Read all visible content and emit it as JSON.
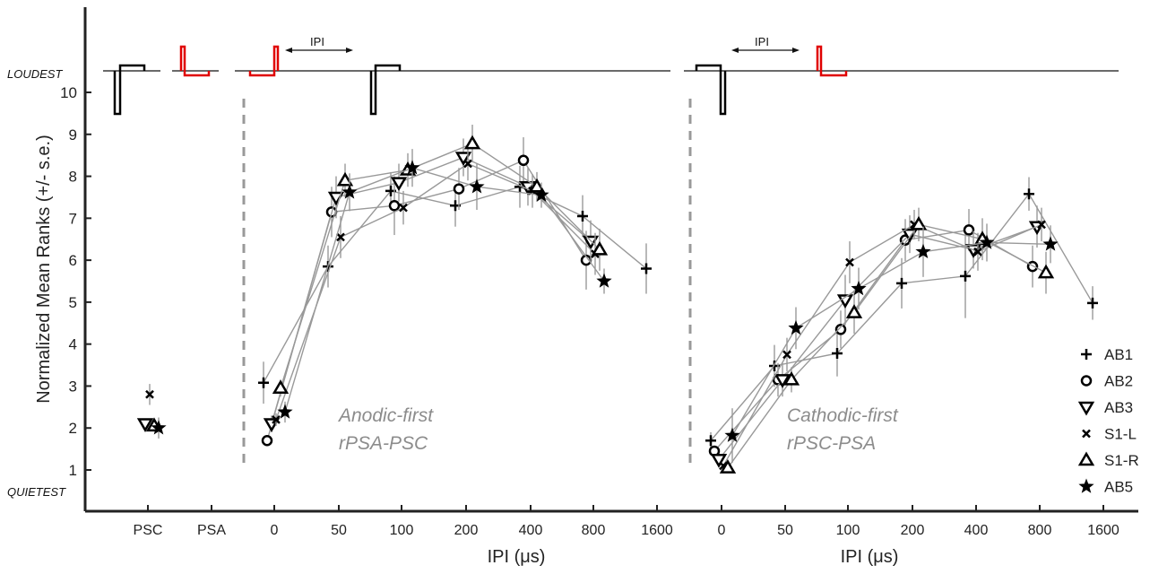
{
  "chart_data": {
    "type": "scatter",
    "ylabel": "Normalized Mean Ranks (+/- s.e.)",
    "ylim": [
      0.5,
      11
    ],
    "y_ticks": [
      1,
      2,
      3,
      4,
      5,
      6,
      7,
      8,
      9,
      10
    ],
    "loud_label": "LOUDEST",
    "quiet_label": "QUIETEST",
    "ipi_marker": "IPI",
    "panels": [
      {
        "id": "reference",
        "x_ticks": [
          "PSC",
          "PSA"
        ],
        "series": [
          {
            "name": "AB1",
            "points": []
          },
          {
            "name": "AB2",
            "points": []
          },
          {
            "name": "AB3",
            "points": [
              {
                "x": "PSC",
                "y": 2.1,
                "err": 0.1
              }
            ]
          },
          {
            "name": "S1-L",
            "points": [
              {
                "x": "PSC",
                "y": 2.8,
                "err": 0.25
              }
            ]
          },
          {
            "name": "S1-R",
            "points": [
              {
                "x": "PSC",
                "y": 2.05,
                "err": 0.1
              }
            ]
          },
          {
            "name": "AB5",
            "points": [
              {
                "x": "PSC",
                "y": 2.0,
                "err": 0.25
              }
            ]
          }
        ]
      },
      {
        "id": "anodic-first",
        "label_line1": "Anodic-first",
        "label_line2": "rPSA-PSC",
        "xlabel": "IPI (μs)",
        "x_ticks": [
          "0",
          "50",
          "100",
          "200",
          "400",
          "800",
          "1600"
        ],
        "series": [
          {
            "name": "AB1",
            "points": [
              {
                "x": "0",
                "y": 3.08,
                "err": 0.5
              },
              {
                "x": "50",
                "y": 5.85,
                "err": 0.5
              },
              {
                "x": "100",
                "y": 7.65,
                "err": 0.45
              },
              {
                "x": "200",
                "y": 7.3,
                "err": 0.5
              },
              {
                "x": "400",
                "y": 7.75,
                "err": 0.5
              },
              {
                "x": "800",
                "y": 7.05,
                "err": 0.5
              },
              {
                "x": "1600",
                "y": 5.8,
                "err": 0.6
              }
            ]
          },
          {
            "name": "AB2",
            "points": [
              {
                "x": "0",
                "y": 1.7,
                "err": 0.05
              },
              {
                "x": "50",
                "y": 7.15,
                "err": 0.6
              },
              {
                "x": "100",
                "y": 7.3,
                "err": 0.7
              },
              {
                "x": "200",
                "y": 7.7,
                "err": 0.5
              },
              {
                "x": "400",
                "y": 8.38,
                "err": 0.55
              },
              {
                "x": "800",
                "y": 6.0,
                "err": 0.7
              }
            ]
          },
          {
            "name": "AB3",
            "points": [
              {
                "x": "0",
                "y": 2.1,
                "err": 0.2
              },
              {
                "x": "50",
                "y": 7.5,
                "err": 0.5
              },
              {
                "x": "100",
                "y": 7.85,
                "err": 0.45
              },
              {
                "x": "200",
                "y": 8.45,
                "err": 0.45
              },
              {
                "x": "400",
                "y": 7.75,
                "err": 0.45
              },
              {
                "x": "800",
                "y": 6.45,
                "err": 0.5
              }
            ]
          },
          {
            "name": "S1-L",
            "points": [
              {
                "x": "0",
                "y": 2.2,
                "err": 0.15
              },
              {
                "x": "50",
                "y": 6.55,
                "err": 0.5
              },
              {
                "x": "100",
                "y": 7.25,
                "err": 0.4
              },
              {
                "x": "200",
                "y": 8.3,
                "err": 0.4
              },
              {
                "x": "400",
                "y": 7.65,
                "err": 0.4
              },
              {
                "x": "800",
                "y": 6.15,
                "err": 0.5
              }
            ]
          },
          {
            "name": "S1-R",
            "points": [
              {
                "x": "0",
                "y": 2.95,
                "err": 0.2
              },
              {
                "x": "50",
                "y": 7.9,
                "err": 0.4
              },
              {
                "x": "100",
                "y": 8.15,
                "err": 0.4
              },
              {
                "x": "200",
                "y": 8.78,
                "err": 0.45
              },
              {
                "x": "400",
                "y": 7.75,
                "err": 0.35
              },
              {
                "x": "800",
                "y": 6.25,
                "err": 0.5
              }
            ]
          },
          {
            "name": "AB5",
            "points": [
              {
                "x": "0",
                "y": 2.38,
                "err": 0.25
              },
              {
                "x": "50",
                "y": 7.62,
                "err": 0.45
              },
              {
                "x": "100",
                "y": 8.2,
                "err": 0.45
              },
              {
                "x": "200",
                "y": 7.75,
                "err": 0.55
              },
              {
                "x": "400",
                "y": 7.55,
                "err": 0.3
              },
              {
                "x": "800",
                "y": 5.5,
                "err": 0.3
              }
            ]
          }
        ]
      },
      {
        "id": "cathodic-first",
        "label_line1": "Cathodic-first",
        "label_line2": "rPSC-PSA",
        "xlabel": "IPI (μs)",
        "x_ticks": [
          "0",
          "50",
          "100",
          "200",
          "400",
          "800",
          "1600"
        ],
        "series": [
          {
            "name": "AB1",
            "points": [
              {
                "x": "0",
                "y": 1.7,
                "err": 0.2
              },
              {
                "x": "50",
                "y": 3.48,
                "err": 0.5
              },
              {
                "x": "100",
                "y": 3.78,
                "err": 0.55
              },
              {
                "x": "200",
                "y": 5.45,
                "err": 0.6
              },
              {
                "x": "400",
                "y": 5.62,
                "err": 1.0
              },
              {
                "x": "800",
                "y": 7.58,
                "err": 0.4
              },
              {
                "x": "1600",
                "y": 4.98,
                "err": 0.4
              }
            ]
          },
          {
            "name": "AB2",
            "points": [
              {
                "x": "0",
                "y": 1.45,
                "err": 0.1
              },
              {
                "x": "50",
                "y": 3.15,
                "err": 0.4
              },
              {
                "x": "100",
                "y": 4.35,
                "err": 0.45
              },
              {
                "x": "200",
                "y": 6.48,
                "err": 0.5
              },
              {
                "x": "400",
                "y": 6.72,
                "err": 0.5
              },
              {
                "x": "800",
                "y": 5.85,
                "err": 0.5
              }
            ]
          },
          {
            "name": "AB3",
            "points": [
              {
                "x": "0",
                "y": 1.25,
                "err": 0.1
              },
              {
                "x": "50",
                "y": 3.15,
                "err": 0.4
              },
              {
                "x": "100",
                "y": 5.05,
                "err": 0.6
              },
              {
                "x": "200",
                "y": 6.62,
                "err": 0.45
              },
              {
                "x": "400",
                "y": 6.25,
                "err": 0.45
              },
              {
                "x": "800",
                "y": 6.8,
                "err": 0.5
              }
            ]
          },
          {
            "name": "S1-L",
            "points": [
              {
                "x": "0",
                "y": 1.1,
                "err": 0.05
              },
              {
                "x": "50",
                "y": 3.75,
                "err": 0.4
              },
              {
                "x": "100",
                "y": 5.95,
                "err": 0.5
              },
              {
                "x": "200",
                "y": 6.85,
                "err": 0.35
              },
              {
                "x": "400",
                "y": 6.2,
                "err": 0.45
              },
              {
                "x": "800",
                "y": 6.85,
                "err": 0.4
              }
            ]
          },
          {
            "name": "S1-R",
            "points": [
              {
                "x": "0",
                "y": 1.05,
                "err": 0.05
              },
              {
                "x": "50",
                "y": 3.15,
                "err": 0.3
              },
              {
                "x": "100",
                "y": 4.75,
                "err": 0.5
              },
              {
                "x": "200",
                "y": 6.85,
                "err": 0.4
              },
              {
                "x": "400",
                "y": 6.5,
                "err": 0.5
              },
              {
                "x": "800",
                "y": 5.7,
                "err": 0.5
              }
            ]
          },
          {
            "name": "AB5",
            "points": [
              {
                "x": "0",
                "y": 1.82,
                "err": 0.65
              },
              {
                "x": "50",
                "y": 4.38,
                "err": 0.5
              },
              {
                "x": "100",
                "y": 5.32,
                "err": 0.5
              },
              {
                "x": "200",
                "y": 6.2,
                "err": 0.6
              },
              {
                "x": "400",
                "y": 6.42,
                "err": 0.45
              },
              {
                "x": "800",
                "y": 6.38,
                "err": 0.45
              }
            ]
          }
        ]
      }
    ],
    "legend": {
      "placement": "bottom-right",
      "entries": [
        {
          "name": "AB1",
          "marker": "plus"
        },
        {
          "name": "AB2",
          "marker": "circle"
        },
        {
          "name": "AB3",
          "marker": "triangle-down"
        },
        {
          "name": "S1-L",
          "marker": "x"
        },
        {
          "name": "S1-R",
          "marker": "triangle-up"
        },
        {
          "name": "AB5",
          "marker": "star"
        }
      ]
    },
    "colors": {
      "markers": "#000000",
      "connectors": "#999999",
      "waveform_reference": "#000000",
      "waveform_highlight": "#e00000",
      "panel_label": "#8c8c8c",
      "divider": "#999999"
    }
  }
}
